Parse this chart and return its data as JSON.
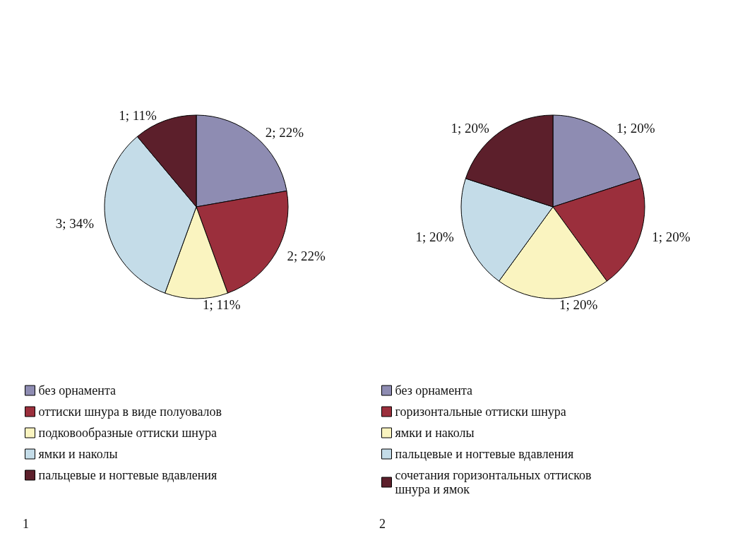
{
  "chart_data": [
    {
      "type": "pie",
      "categories": [
        "без орнамента",
        "оттиски шнура в виде полуовалов",
        "подковообразные оттиски шнура",
        "ямки и наколы",
        "пальцевые и ногтевые вдавления"
      ],
      "values": [
        2,
        2,
        1,
        3,
        1
      ],
      "value_labels": [
        "2; 22%",
        "2; 22%",
        "1; 11%",
        "3; 34%",
        "1; 11%"
      ],
      "colors": [
        "#8e8cb2",
        "#9b2f3c",
        "#faf4c0",
        "#c4dce8",
        "#5c1f2b"
      ],
      "legend": "bottom left",
      "annotations": [
        "1"
      ]
    },
    {
      "type": "pie",
      "categories": [
        "без орнамента",
        "горизонтальные оттиски шнура",
        "ямки и наколы",
        "пальцевые и ногтевые вдавления",
        "сочетания горизонтальных оттисков шнура и ямок"
      ],
      "values": [
        1,
        1,
        1,
        1,
        1
      ],
      "value_labels": [
        "1; 20%",
        "1; 20%",
        "1; 20%",
        "1; 20%",
        "1; 20%"
      ],
      "colors": [
        "#8e8cb2",
        "#9b2f3c",
        "#faf4c0",
        "#c4dce8",
        "#5c1f2b"
      ],
      "legend": "bottom left",
      "annotations": [
        "2"
      ]
    }
  ]
}
